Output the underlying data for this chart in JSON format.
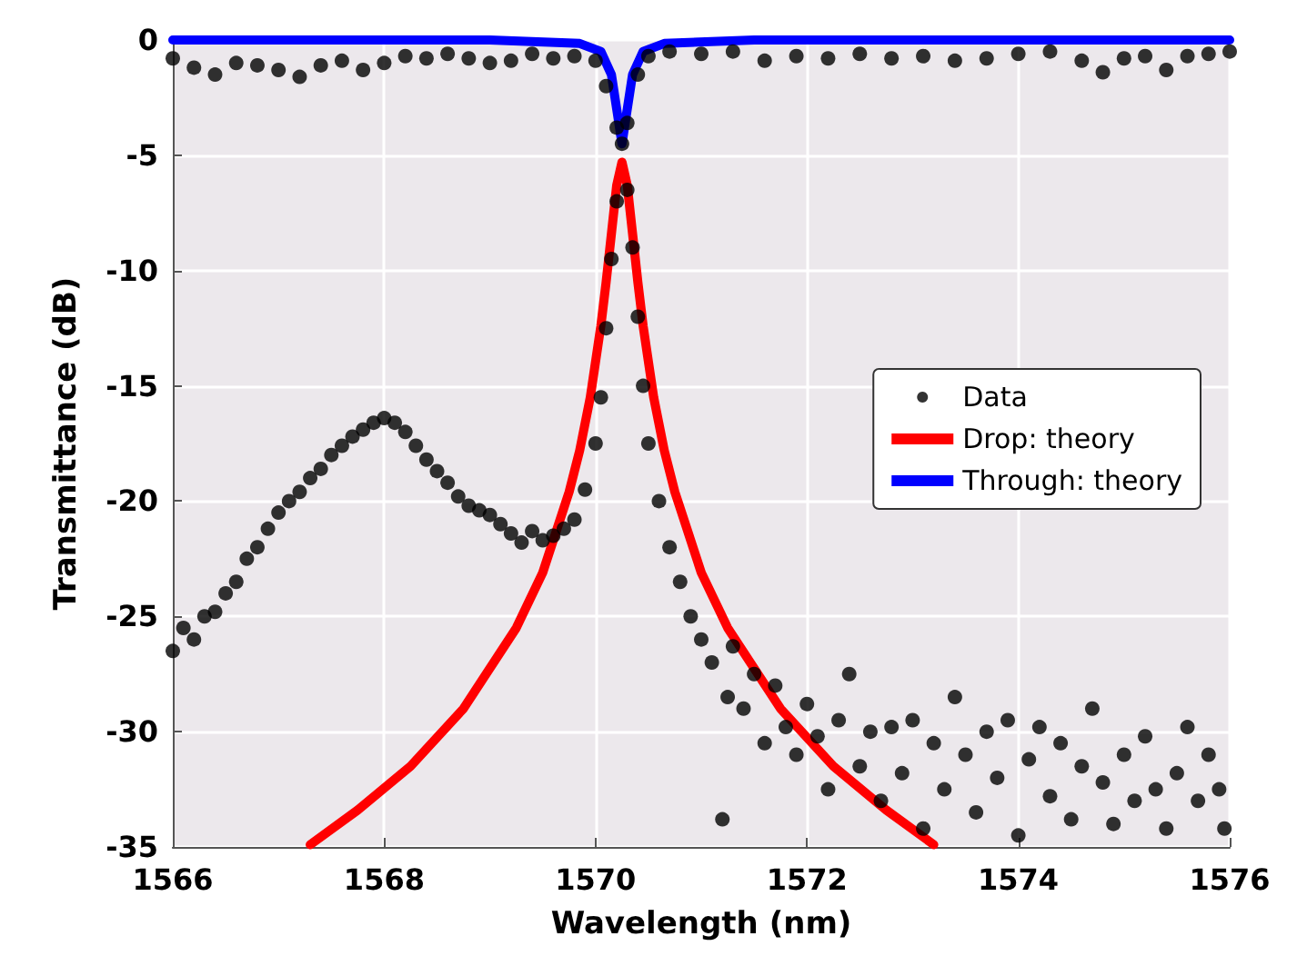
{
  "chart_data": {
    "type": "scatter",
    "xlabel": "Wavelength (nm)",
    "ylabel": "Transmittance (dB)",
    "xlim": [
      1566,
      1576
    ],
    "xticks": [
      1566,
      1568,
      1570,
      1572,
      1574,
      1576
    ],
    "ylim": [
      -35,
      0
    ],
    "yticks": [
      -35,
      -30,
      -25,
      -20,
      -15,
      -10,
      -5,
      0
    ],
    "grid": true,
    "legend": "right",
    "marker": "circle",
    "series": [
      {
        "name": "Data",
        "color": "#000000",
        "x": [
          1566,
          1566.2,
          1566.4,
          1566.6,
          1566.8,
          1567,
          1567.2,
          1567.4,
          1567.6,
          1567.8,
          1568,
          1568.2,
          1568.4,
          1568.6,
          1568.8,
          1569,
          1569.2,
          1569.4,
          1569.6,
          1569.8,
          1570,
          1570.1,
          1570.2,
          1570.25,
          1570.3,
          1570.4,
          1570.5,
          1570.7,
          1571,
          1571.3,
          1571.6,
          1571.9,
          1572.2,
          1572.5,
          1572.8,
          1573.1,
          1573.4,
          1573.7,
          1574,
          1574.3,
          1574.6,
          1574.8,
          1575,
          1575.2,
          1575.4,
          1575.6,
          1575.8,
          1576
        ],
        "values": [
          -0.8,
          -1.2,
          -1.5,
          -1,
          -1.1,
          -1.3,
          -1.6,
          -1.1,
          -0.9,
          -1.3,
          -1,
          -0.7,
          -0.8,
          -0.6,
          -0.8,
          -1,
          -0.9,
          -0.6,
          -0.8,
          -0.7,
          -0.9,
          -2,
          -3.8,
          -4.5,
          -3.6,
          -1.5,
          -0.7,
          -0.5,
          -0.6,
          -0.5,
          -0.9,
          -0.7,
          -0.8,
          -0.6,
          -0.8,
          -0.7,
          -0.9,
          -0.8,
          -0.6,
          -0.5,
          -0.9,
          -1.4,
          -0.8,
          -0.7,
          -1.3,
          -0.7,
          -0.6,
          -0.5
        ]
      },
      {
        "color": "#000000",
        "x": [
          1566,
          1566.1,
          1566.2,
          1566.3,
          1566.4,
          1566.5,
          1566.6,
          1566.7,
          1566.8,
          1566.9,
          1567,
          1567.1,
          1567.2,
          1567.3,
          1567.4,
          1567.5,
          1567.6,
          1567.7,
          1567.8,
          1567.9,
          1568,
          1568.1,
          1568.2,
          1568.3,
          1568.4,
          1568.5,
          1568.6,
          1568.7,
          1568.8,
          1568.9,
          1569,
          1569.1,
          1569.2,
          1569.3,
          1569.4,
          1569.5,
          1569.6,
          1569.7,
          1569.8,
          1569.9,
          1570,
          1570.05,
          1570.1,
          1570.15,
          1570.2,
          1570.3,
          1570.35,
          1570.4,
          1570.45,
          1570.5,
          1570.6,
          1570.7,
          1570.8,
          1570.9,
          1571,
          1571.1,
          1571.2,
          1571.25,
          1571.3,
          1571.4,
          1571.5,
          1571.6,
          1571.7,
          1571.8,
          1571.9,
          1572,
          1572.1,
          1572.2,
          1572.3,
          1572.4,
          1572.5,
          1572.6,
          1572.7,
          1572.8,
          1572.9,
          1573,
          1573.1,
          1573.2,
          1573.3,
          1573.4,
          1573.5,
          1573.6,
          1573.7,
          1573.8,
          1573.9,
          1574,
          1574.1,
          1574.2,
          1574.3,
          1574.4,
          1574.5,
          1574.6,
          1574.7,
          1574.8,
          1574.9,
          1575,
          1575.1,
          1575.2,
          1575.3,
          1575.4,
          1575.5,
          1575.6,
          1575.7,
          1575.8,
          1575.9,
          1575.95
        ],
        "values": [
          -26.5,
          -25.5,
          -26,
          -25,
          -24.8,
          -24,
          -23.5,
          -22.5,
          -22,
          -21.2,
          -20.5,
          -20,
          -19.6,
          -19,
          -18.6,
          -18,
          -17.6,
          -17.2,
          -16.9,
          -16.6,
          -16.4,
          -16.6,
          -17,
          -17.6,
          -18.2,
          -18.7,
          -19.2,
          -19.8,
          -20.2,
          -20.4,
          -20.6,
          -21,
          -21.4,
          -21.8,
          -21.3,
          -21.7,
          -21.5,
          -21.2,
          -20.8,
          -19.5,
          -17.5,
          -15.5,
          -12.5,
          -9.5,
          -7,
          -6.5,
          -9,
          -12,
          -15,
          -17.5,
          -20,
          -22,
          -23.5,
          -25,
          -26,
          -27,
          -33.8,
          -28.5,
          -26.3,
          -29,
          -27.5,
          -30.5,
          -28,
          -29.8,
          -31,
          -28.8,
          -30.2,
          -32.5,
          -29.5,
          -27.5,
          -31.5,
          -30,
          -33,
          -29.8,
          -31.8,
          -29.5,
          -34.2,
          -30.5,
          -32.5,
          -28.5,
          -31,
          -33.5,
          -30,
          -32,
          -29.5,
          -34.5,
          -31.2,
          -29.8,
          -32.8,
          -30.5,
          -33.8,
          -31.5,
          -29,
          -32.2,
          -34,
          -31,
          -33,
          -30.2,
          -32.5,
          -34.2,
          -31.8,
          -29.8,
          -33,
          -31,
          -32.5,
          -34.2
        ]
      },
      {
        "name": "Drop: theory",
        "type": "line",
        "marker": "none",
        "color": "#ff0000",
        "x": [
          1567.3,
          1567.75,
          1568.25,
          1568.75,
          1569.25,
          1569.5,
          1569.75,
          1569.85,
          1569.95,
          1570.05,
          1570.1,
          1570.15,
          1570.2,
          1570.25,
          1570.3,
          1570.35,
          1570.4,
          1570.45,
          1570.55,
          1570.65,
          1570.75,
          1571,
          1571.25,
          1571.75,
          1572.25,
          1572.75,
          1573.2
        ],
        "values": [
          -34.9,
          -33.4,
          -31.5,
          -29,
          -25.5,
          -23.1,
          -19.6,
          -17.8,
          -15.5,
          -12.4,
          -10.5,
          -8.4,
          -6.3,
          -5.3,
          -6.3,
          -8.4,
          -10.5,
          -12.4,
          -15.5,
          -17.8,
          -19.6,
          -23.1,
          -25.5,
          -29,
          -31.5,
          -33.4,
          -34.9
        ]
      },
      {
        "name": "Through: theory",
        "type": "line",
        "marker": "none",
        "color": "#0000ff",
        "x": [
          1566,
          1569,
          1569.85,
          1570.05,
          1570.15,
          1570.2,
          1570.25,
          1570.3,
          1570.35,
          1570.45,
          1570.65,
          1571.5,
          1576
        ],
        "values": [
          0,
          0,
          -0.15,
          -0.5,
          -1.5,
          -3,
          -4.5,
          -3,
          -1.5,
          -0.5,
          -0.15,
          0,
          0
        ]
      }
    ]
  }
}
